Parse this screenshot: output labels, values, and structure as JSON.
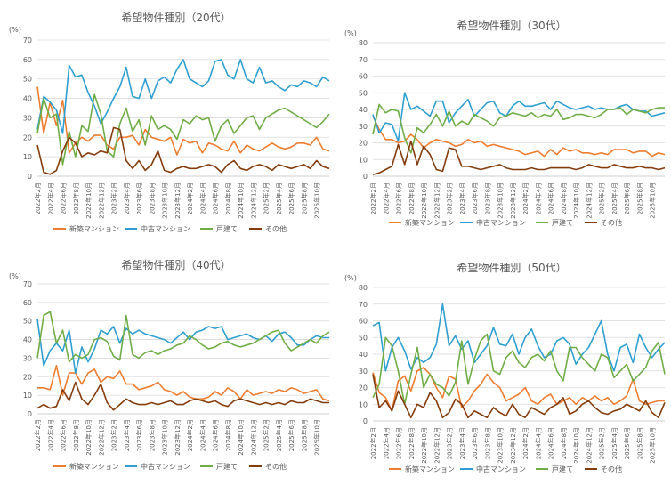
{
  "colors": {
    "shinchiku": "#ED7D31",
    "chuko": "#2E9FD0",
    "kodate": "#70AD47",
    "other": "#843C0C",
    "grid": "#d9d9d9",
    "axis": "#bfbfbf",
    "text": "#595959"
  },
  "chart_data": [
    {
      "type": "line",
      "title": "希望物件種別（20代）",
      "ylabel": "(%)",
      "ylim": [
        0,
        70
      ],
      "yticks": [
        0,
        10,
        20,
        30,
        40,
        50,
        60,
        70
      ],
      "grid": true,
      "legend": "bottom",
      "x_tick_labels": [
        "2022年2月",
        "2022年4月",
        "2022年6月",
        "2022年8月",
        "2022年10月",
        "2022年12月",
        "2023年2月",
        "2023年4月",
        "2023年6月",
        "2023年8月",
        "2023年10月",
        "2023年12月",
        "2024年2月",
        "2024年4月",
        "2024年6月",
        "2024年8月",
        "2024年10月",
        "2024年12月",
        "2025年2月",
        "2025年4月",
        "2025年6月",
        "2025年8月",
        "2025年10月"
      ],
      "series": [
        {
          "name": "新築マンション",
          "color_key": "shinchiku",
          "values": [
            46,
            22,
            38,
            26,
            39,
            12,
            17,
            20,
            18,
            21,
            21,
            16,
            14,
            20,
            20,
            21,
            16,
            24,
            20,
            19,
            18,
            20,
            11,
            19,
            17,
            18,
            12,
            17,
            16,
            14,
            13,
            18,
            12,
            16,
            14,
            13,
            15,
            17,
            15,
            14,
            15,
            17,
            17,
            16,
            20,
            14,
            13
          ]
        },
        {
          "name": "中古マンション",
          "color_key": "chuko",
          "values": [
            24,
            41,
            38,
            34,
            22,
            57,
            51,
            52,
            43,
            36,
            27,
            33,
            40,
            46,
            56,
            41,
            40,
            50,
            40,
            49,
            51,
            48,
            55,
            60,
            50,
            48,
            46,
            49,
            59,
            60,
            52,
            50,
            60,
            50,
            48,
            56,
            48,
            49,
            46,
            44,
            47,
            46,
            49,
            48,
            46,
            51,
            49
          ]
        },
        {
          "name": "戸建て",
          "color_key": "kodate",
          "values": [
            22,
            40,
            30,
            32,
            6,
            23,
            10,
            26,
            23,
            42,
            32,
            13,
            10,
            27,
            35,
            23,
            29,
            16,
            31,
            24,
            26,
            24,
            19,
            29,
            27,
            31,
            29,
            30,
            18,
            26,
            29,
            22,
            26,
            30,
            31,
            24,
            30,
            32,
            34,
            35,
            33,
            31,
            29,
            27,
            25,
            28,
            32
          ]
        },
        {
          "name": "その他",
          "color_key": "other",
          "values": [
            16,
            2,
            1,
            3,
            13,
            20,
            17,
            10,
            12,
            11,
            13,
            12,
            25,
            24,
            8,
            4,
            8,
            3,
            6,
            13,
            3,
            2,
            4,
            5,
            4,
            4,
            5,
            6,
            5,
            2,
            6,
            8,
            4,
            3,
            5,
            6,
            5,
            3,
            6,
            5,
            4,
            5,
            6,
            4,
            8,
            5,
            4
          ]
        }
      ]
    },
    {
      "type": "line",
      "title": "希望物件種別（30代）",
      "ylabel": "(%)",
      "ylim": [
        0,
        80
      ],
      "yticks": [
        0,
        10,
        20,
        30,
        40,
        50,
        60,
        70,
        80
      ],
      "grid": true,
      "legend": "bottom",
      "x_tick_labels": [
        "2022年2月",
        "2022年4月",
        "2022年6月",
        "2022年8月",
        "2022年10月",
        "2022年12月",
        "2023年2月",
        "2023年4月",
        "2023年6月",
        "2023年8月",
        "2023年10月",
        "2023年12月",
        "2024年2月",
        "2024年4月",
        "2024年6月",
        "2024年8月",
        "2024年10月",
        "2024年12月",
        "2025年2月",
        "2025年4月",
        "2025年6月",
        "2025年8月",
        "2025年10月"
      ],
      "series": [
        {
          "name": "新築マンション",
          "color_key": "shinchiku",
          "values": [
            36,
            28,
            22,
            22,
            20,
            21,
            25,
            22,
            17,
            20,
            22,
            21,
            20,
            18,
            19,
            22,
            20,
            21,
            18,
            19,
            18,
            17,
            16,
            15,
            13,
            14,
            15,
            12,
            16,
            13,
            17,
            15,
            16,
            14,
            14,
            13,
            14,
            13,
            16,
            16,
            16,
            14,
            15,
            15,
            12,
            14,
            13
          ]
        },
        {
          "name": "中古マンション",
          "color_key": "chuko",
          "values": [
            37,
            26,
            32,
            31,
            21,
            50,
            40,
            42,
            39,
            36,
            45,
            45,
            32,
            38,
            42,
            46,
            36,
            40,
            44,
            45,
            38,
            36,
            42,
            45,
            42,
            42,
            43,
            44,
            40,
            45,
            43,
            41,
            40,
            41,
            42,
            40,
            41,
            40,
            40,
            42,
            43,
            40,
            39,
            39,
            36,
            37,
            38
          ]
        },
        {
          "name": "戸建て",
          "color_key": "kodate",
          "values": [
            25,
            43,
            38,
            40,
            39,
            23,
            14,
            29,
            26,
            31,
            37,
            30,
            39,
            30,
            33,
            31,
            37,
            35,
            33,
            30,
            35,
            36,
            38,
            37,
            36,
            38,
            35,
            37,
            36,
            40,
            34,
            35,
            37,
            37,
            36,
            35,
            37,
            40,
            40,
            41,
            37,
            40,
            39,
            38,
            40,
            41,
            41
          ]
        },
        {
          "name": "その他",
          "color_key": "other",
          "values": [
            1,
            2,
            4,
            6,
            19,
            7,
            21,
            7,
            18,
            13,
            4,
            3,
            17,
            16,
            6,
            6,
            5,
            4,
            5,
            6,
            7,
            5,
            4,
            4,
            4,
            5,
            4,
            4,
            5,
            5,
            5,
            5,
            4,
            5,
            7,
            6,
            5,
            5,
            7,
            6,
            5,
            5,
            6,
            5,
            5,
            4,
            5
          ]
        }
      ]
    },
    {
      "type": "line",
      "title": "希望物件種別（40代）",
      "ylabel": "(%)",
      "ylim": [
        0,
        70
      ],
      "yticks": [
        0,
        10,
        20,
        30,
        40,
        50,
        60,
        70
      ],
      "grid": true,
      "legend": "bottom",
      "x_tick_labels": [
        "2022年2月",
        "2022年4月",
        "2022年6月",
        "2022年8月",
        "2022年10月",
        "2022年12月",
        "2023年2月",
        "2023年4月",
        "2023年6月",
        "2023年8月",
        "2023年10月",
        "2023年12月",
        "2024年2月",
        "2024年4月",
        "2024年6月",
        "2024年8月",
        "2024年10月",
        "2024年12月",
        "2025年2月",
        "2025年4月",
        "2025年6月",
        "2025年8月",
        "2025年10月"
      ],
      "series": [
        {
          "name": "新築マンション",
          "color_key": "shinchiku",
          "values": [
            14,
            14,
            13,
            26,
            10,
            22,
            22,
            16,
            22,
            24,
            17,
            20,
            19,
            23,
            16,
            16,
            13,
            14,
            15,
            17,
            13,
            12,
            10,
            12,
            9,
            8,
            8,
            9,
            12,
            10,
            14,
            12,
            8,
            13,
            10,
            11,
            12,
            11,
            13,
            12,
            14,
            13,
            11,
            12,
            13,
            8,
            7
          ]
        },
        {
          "name": "中古マンション",
          "color_key": "chuko",
          "values": [
            51,
            26,
            34,
            38,
            34,
            45,
            22,
            36,
            28,
            35,
            45,
            43,
            47,
            38,
            46,
            43,
            45,
            43,
            42,
            41,
            40,
            38,
            41,
            44,
            40,
            44,
            45,
            47,
            46,
            47,
            40,
            41,
            42,
            43,
            41,
            40,
            42,
            39,
            43,
            44,
            41,
            37,
            37,
            40,
            42,
            41,
            41
          ]
        },
        {
          "name": "戸建て",
          "color_key": "kodate",
          "values": [
            30,
            53,
            55,
            38,
            45,
            28,
            32,
            30,
            32,
            40,
            41,
            39,
            31,
            29,
            53,
            32,
            30,
            33,
            34,
            32,
            34,
            35,
            37,
            38,
            42,
            40,
            37,
            35,
            36,
            38,
            39,
            37,
            36,
            37,
            38,
            40,
            42,
            44,
            45,
            38,
            34,
            36,
            38,
            40,
            38,
            42,
            44
          ]
        },
        {
          "name": "その他",
          "color_key": "other",
          "values": [
            3,
            5,
            3,
            4,
            13,
            7,
            17,
            8,
            5,
            10,
            16,
            6,
            2,
            5,
            8,
            6,
            5,
            5,
            6,
            5,
            6,
            7,
            5,
            5,
            7,
            8,
            7,
            6,
            7,
            5,
            4,
            7,
            8,
            7,
            6,
            5,
            6,
            5,
            6,
            5,
            7,
            6,
            6,
            8,
            7,
            6,
            6
          ]
        }
      ]
    },
    {
      "type": "line",
      "title": "希望物件種別（50代）",
      "ylabel": "(%)",
      "ylim": [
        0,
        80
      ],
      "yticks": [
        0,
        10,
        20,
        30,
        40,
        50,
        60,
        70,
        80
      ],
      "grid": true,
      "legend": "bottom",
      "x_tick_labels": [
        "2022年2月",
        "2022年4月",
        "2022年6月",
        "2022年8月",
        "2022年10月",
        "2022年12月",
        "2023年2月",
        "2023年4月",
        "2023年6月",
        "2023年8月",
        "2023年10月",
        "2023年12月",
        "2024年2月",
        "2024年4月",
        "2024年6月",
        "2024年8月",
        "2024年10月",
        "2024年12月",
        "2025年2月",
        "2025年4月",
        "2025年6月",
        "2025年8月",
        "2025年10月"
      ],
      "series": [
        {
          "name": "新築マンション",
          "color_key": "shinchiku",
          "values": [
            29,
            17,
            14,
            6,
            24,
            27,
            18,
            30,
            32,
            28,
            20,
            14,
            27,
            25,
            8,
            12,
            18,
            22,
            28,
            23,
            20,
            12,
            14,
            16,
            20,
            12,
            10,
            14,
            16,
            10,
            12,
            14,
            10,
            14,
            12,
            15,
            12,
            14,
            10,
            12,
            15,
            25,
            12,
            10,
            11,
            12,
            12
          ]
        },
        {
          "name": "中古マンション",
          "color_key": "chuko",
          "values": [
            57,
            59,
            30,
            44,
            50,
            42,
            31,
            38,
            35,
            38,
            46,
            70,
            45,
            51,
            43,
            48,
            35,
            40,
            45,
            56,
            46,
            45,
            52,
            40,
            50,
            55,
            45,
            38,
            40,
            48,
            50,
            46,
            34,
            40,
            44,
            52,
            60,
            40,
            30,
            44,
            46,
            35,
            52,
            44,
            38,
            43,
            47
          ]
        },
        {
          "name": "戸建て",
          "color_key": "kodate",
          "values": [
            14,
            22,
            50,
            45,
            30,
            10,
            28,
            44,
            20,
            28,
            22,
            20,
            15,
            23,
            48,
            22,
            37,
            48,
            52,
            30,
            28,
            38,
            42,
            35,
            32,
            38,
            40,
            36,
            42,
            30,
            24,
            44,
            44,
            38,
            34,
            30,
            40,
            38,
            26,
            30,
            34,
            24,
            28,
            32,
            42,
            47,
            28
          ]
        },
        {
          "name": "その他",
          "color_key": "other",
          "values": [
            28,
            8,
            12,
            6,
            18,
            10,
            2,
            10,
            8,
            17,
            12,
            2,
            5,
            13,
            10,
            2,
            6,
            4,
            2,
            8,
            5,
            3,
            10,
            4,
            2,
            8,
            6,
            4,
            8,
            10,
            14,
            4,
            6,
            10,
            12,
            8,
            5,
            4,
            6,
            7,
            10,
            8,
            6,
            12,
            5,
            2,
            11
          ]
        }
      ]
    }
  ]
}
